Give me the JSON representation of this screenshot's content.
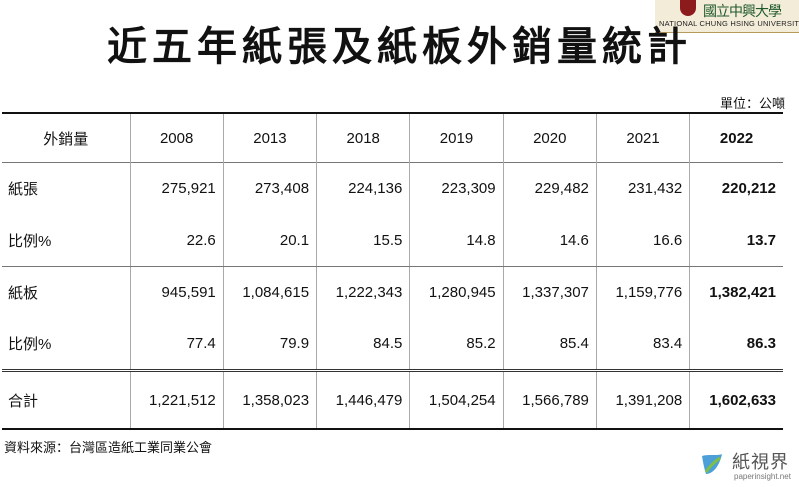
{
  "header": {
    "logo_text": "國立中興大學",
    "logo_subtitle": "NATIONAL CHUNG HSING UNIVERSITY",
    "title": "近五年紙張及紙板外銷量統計",
    "unit": "單位：公噸"
  },
  "table": {
    "columns": [
      "外銷量",
      "2008",
      "2013",
      "2018",
      "2019",
      "2020",
      "2021",
      "2022"
    ],
    "rows": [
      {
        "label": "紙張",
        "values": [
          "275,921",
          "273,408",
          "224,136",
          "223,309",
          "229,482",
          "231,432",
          "220,212"
        ]
      },
      {
        "label": "比例%",
        "values": [
          "22.6",
          "20.1",
          "15.5",
          "14.8",
          "14.6",
          "16.6",
          "13.7"
        ]
      },
      {
        "label": "紙板",
        "values": [
          "945,591",
          "1,084,615",
          "1,222,343",
          "1,280,945",
          "1,337,307",
          "1,159,776",
          "1,382,421"
        ]
      },
      {
        "label": "比例%",
        "values": [
          "77.4",
          "79.9",
          "84.5",
          "85.2",
          "85.4",
          "83.4",
          "86.3"
        ]
      },
      {
        "label": "合計",
        "values": [
          "1,221,512",
          "1,358,023",
          "1,446,479",
          "1,504,254",
          "1,566,789",
          "1,391,208",
          "1,602,633"
        ]
      }
    ]
  },
  "footer": {
    "source": "資料來源：台灣區造紙工業同業公會",
    "brand_name": "紙視界",
    "brand_url": "paperinsight.net"
  },
  "colors": {
    "brand_blue": "#2d8fd0",
    "brand_green": "#7cc04a"
  }
}
